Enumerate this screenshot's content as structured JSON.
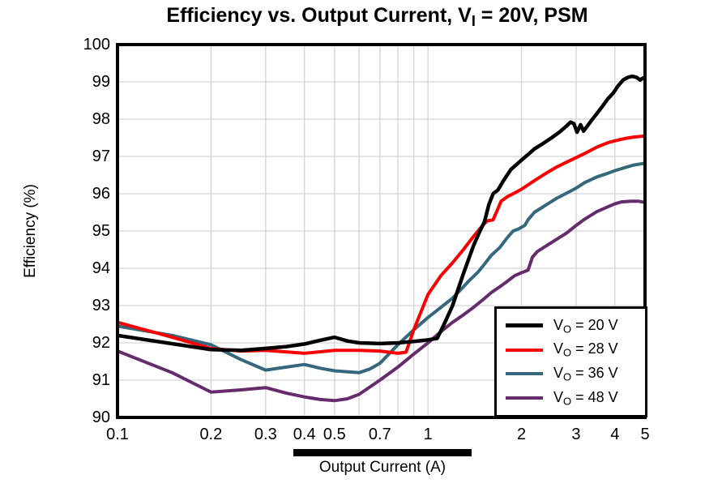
{
  "ui": {
    "title": {
      "prefix": "Efficiency vs. Output Current, V",
      "sub": "I",
      "suffix": " = 20V, PSM"
    },
    "y_axis_title": "Efficiency (%)",
    "x_axis_title": "Output Current (A)",
    "y_tick_labels": [
      "100",
      "99",
      "98",
      "97",
      "96",
      "95",
      "94",
      "93",
      "92",
      "91",
      "90"
    ],
    "x_tick_labels": [
      "0.1",
      "0.2",
      "0.3",
      "0.4",
      "0.5",
      "0.7",
      "1",
      "2",
      "3",
      "4",
      "5"
    ],
    "legend": {
      "items": [
        {
          "key": "vo-20",
          "prefix": "V",
          "sub": "O",
          "suffix": " = 20 V",
          "color": "#000000"
        },
        {
          "key": "vo-28",
          "prefix": "V",
          "sub": "O",
          "suffix": " = 28 V",
          "color": "#fa0000"
        },
        {
          "key": "vo-36",
          "prefix": "V",
          "sub": "O",
          "suffix": " = 36 V",
          "color": "#35687d"
        },
        {
          "key": "vo-48",
          "prefix": "V",
          "sub": "O",
          "suffix": " = 48 V",
          "color": "#652b6c"
        }
      ]
    },
    "colors": {
      "grid": "#d4d4d4",
      "axis": "#000000",
      "background": "#ffffff"
    }
  },
  "chart_data": {
    "type": "line",
    "title": "Efficiency vs. Output Current, VI = 20V, PSM",
    "xlabel": "Output Current (A)",
    "ylabel": "Efficiency (%)",
    "x_scale": "log",
    "xlim": [
      0.1,
      5
    ],
    "ylim": [
      90,
      100
    ],
    "grid": true,
    "legend_position": "lower right",
    "x_tick_values": [
      0.1,
      0.2,
      0.3,
      0.4,
      0.5,
      0.7,
      1,
      2,
      3,
      4,
      5
    ],
    "y_tick_values": [
      100,
      99,
      98,
      97,
      96,
      95,
      94,
      93,
      92,
      91,
      90
    ],
    "x_gridlines": [
      0.2,
      0.3,
      0.4,
      0.5,
      0.6,
      0.7,
      0.8,
      0.9,
      1,
      2,
      3,
      4
    ],
    "y_gridlines": [
      91,
      92,
      93,
      94,
      95,
      96,
      97,
      98,
      99
    ],
    "series": [
      {
        "key": "vo-48",
        "name": "VO = 48 V",
        "color": "#652b6c",
        "points": [
          [
            0.1,
            91.78
          ],
          [
            0.15,
            91.2
          ],
          [
            0.2,
            90.68
          ],
          [
            0.25,
            90.74
          ],
          [
            0.3,
            90.8
          ],
          [
            0.35,
            90.65
          ],
          [
            0.4,
            90.55
          ],
          [
            0.45,
            90.48
          ],
          [
            0.5,
            90.45
          ],
          [
            0.55,
            90.5
          ],
          [
            0.6,
            90.62
          ],
          [
            0.7,
            91.0
          ],
          [
            0.8,
            91.35
          ],
          [
            0.9,
            91.7
          ],
          [
            1.0,
            92.0
          ],
          [
            1.1,
            92.3
          ],
          [
            1.2,
            92.55
          ],
          [
            1.3,
            92.75
          ],
          [
            1.4,
            92.95
          ],
          [
            1.5,
            93.15
          ],
          [
            1.6,
            93.35
          ],
          [
            1.7,
            93.5
          ],
          [
            1.8,
            93.65
          ],
          [
            1.9,
            93.8
          ],
          [
            2.0,
            93.88
          ],
          [
            2.1,
            93.95
          ],
          [
            2.17,
            94.3
          ],
          [
            2.25,
            94.45
          ],
          [
            2.4,
            94.6
          ],
          [
            2.6,
            94.78
          ],
          [
            2.8,
            94.95
          ],
          [
            3.0,
            95.15
          ],
          [
            3.2,
            95.32
          ],
          [
            3.5,
            95.52
          ],
          [
            3.8,
            95.65
          ],
          [
            4.0,
            95.73
          ],
          [
            4.2,
            95.78
          ],
          [
            4.5,
            95.8
          ],
          [
            4.75,
            95.8
          ],
          [
            5.0,
            95.77
          ]
        ]
      },
      {
        "key": "vo-36",
        "name": "VO = 36 V",
        "color": "#35687d",
        "points": [
          [
            0.1,
            92.45
          ],
          [
            0.15,
            92.2
          ],
          [
            0.2,
            91.95
          ],
          [
            0.25,
            91.55
          ],
          [
            0.3,
            91.27
          ],
          [
            0.35,
            91.35
          ],
          [
            0.4,
            91.42
          ],
          [
            0.45,
            91.32
          ],
          [
            0.5,
            91.25
          ],
          [
            0.6,
            91.2
          ],
          [
            0.65,
            91.3
          ],
          [
            0.7,
            91.45
          ],
          [
            0.8,
            91.95
          ],
          [
            0.9,
            92.35
          ],
          [
            1.0,
            92.68
          ],
          [
            1.1,
            92.95
          ],
          [
            1.2,
            93.2
          ],
          [
            1.3,
            93.5
          ],
          [
            1.35,
            93.65
          ],
          [
            1.45,
            93.9
          ],
          [
            1.5,
            94.05
          ],
          [
            1.6,
            94.35
          ],
          [
            1.7,
            94.55
          ],
          [
            1.8,
            94.82
          ],
          [
            1.88,
            95.0
          ],
          [
            1.95,
            95.05
          ],
          [
            2.05,
            95.15
          ],
          [
            2.1,
            95.3
          ],
          [
            2.2,
            95.5
          ],
          [
            2.4,
            95.7
          ],
          [
            2.6,
            95.88
          ],
          [
            2.8,
            96.02
          ],
          [
            3.0,
            96.15
          ],
          [
            3.2,
            96.3
          ],
          [
            3.5,
            96.45
          ],
          [
            3.8,
            96.55
          ],
          [
            4.0,
            96.62
          ],
          [
            4.3,
            96.7
          ],
          [
            4.6,
            96.77
          ],
          [
            5.0,
            96.82
          ]
        ]
      },
      {
        "key": "vo-28",
        "name": "VO = 28 V",
        "color": "#fa0000",
        "points": [
          [
            0.1,
            92.55
          ],
          [
            0.15,
            92.15
          ],
          [
            0.2,
            91.85
          ],
          [
            0.25,
            91.78
          ],
          [
            0.3,
            91.8
          ],
          [
            0.4,
            91.72
          ],
          [
            0.5,
            91.8
          ],
          [
            0.6,
            91.8
          ],
          [
            0.7,
            91.78
          ],
          [
            0.8,
            91.72
          ],
          [
            0.85,
            91.75
          ],
          [
            0.9,
            92.35
          ],
          [
            1.0,
            93.3
          ],
          [
            1.1,
            93.8
          ],
          [
            1.2,
            94.15
          ],
          [
            1.3,
            94.5
          ],
          [
            1.4,
            94.85
          ],
          [
            1.5,
            95.15
          ],
          [
            1.55,
            95.27
          ],
          [
            1.62,
            95.3
          ],
          [
            1.68,
            95.6
          ],
          [
            1.72,
            95.8
          ],
          [
            1.8,
            95.92
          ],
          [
            1.9,
            96.02
          ],
          [
            2.0,
            96.12
          ],
          [
            2.2,
            96.35
          ],
          [
            2.4,
            96.55
          ],
          [
            2.6,
            96.72
          ],
          [
            2.8,
            96.85
          ],
          [
            3.0,
            96.97
          ],
          [
            3.2,
            97.08
          ],
          [
            3.5,
            97.25
          ],
          [
            3.8,
            97.37
          ],
          [
            4.0,
            97.42
          ],
          [
            4.3,
            97.48
          ],
          [
            4.6,
            97.52
          ],
          [
            5.0,
            97.55
          ]
        ]
      },
      {
        "key": "vo-20",
        "name": "VO = 20 V",
        "color": "#000000",
        "points": [
          [
            0.1,
            92.2
          ],
          [
            0.2,
            91.82
          ],
          [
            0.25,
            91.8
          ],
          [
            0.3,
            91.85
          ],
          [
            0.35,
            91.9
          ],
          [
            0.4,
            91.97
          ],
          [
            0.45,
            92.07
          ],
          [
            0.5,
            92.15
          ],
          [
            0.55,
            92.05
          ],
          [
            0.6,
            92.0
          ],
          [
            0.7,
            91.98
          ],
          [
            0.8,
            92.0
          ],
          [
            0.9,
            92.04
          ],
          [
            1.0,
            92.08
          ],
          [
            1.07,
            92.12
          ],
          [
            1.12,
            92.45
          ],
          [
            1.2,
            93.0
          ],
          [
            1.3,
            93.85
          ],
          [
            1.4,
            94.6
          ],
          [
            1.47,
            95.0
          ],
          [
            1.52,
            95.25
          ],
          [
            1.57,
            95.7
          ],
          [
            1.62,
            96.0
          ],
          [
            1.68,
            96.1
          ],
          [
            1.75,
            96.35
          ],
          [
            1.85,
            96.65
          ],
          [
            2.0,
            96.9
          ],
          [
            2.1,
            97.05
          ],
          [
            2.2,
            97.2
          ],
          [
            2.35,
            97.35
          ],
          [
            2.5,
            97.5
          ],
          [
            2.65,
            97.65
          ],
          [
            2.78,
            97.8
          ],
          [
            2.88,
            97.92
          ],
          [
            2.95,
            97.88
          ],
          [
            3.02,
            97.65
          ],
          [
            3.1,
            97.85
          ],
          [
            3.17,
            97.68
          ],
          [
            3.25,
            97.8
          ],
          [
            3.35,
            97.95
          ],
          [
            3.5,
            98.15
          ],
          [
            3.65,
            98.35
          ],
          [
            3.8,
            98.55
          ],
          [
            3.95,
            98.7
          ],
          [
            4.1,
            98.9
          ],
          [
            4.25,
            99.05
          ],
          [
            4.4,
            99.12
          ],
          [
            4.55,
            99.15
          ],
          [
            4.7,
            99.12
          ],
          [
            4.82,
            99.05
          ],
          [
            4.92,
            99.1
          ],
          [
            5.0,
            99.1
          ]
        ]
      }
    ]
  }
}
